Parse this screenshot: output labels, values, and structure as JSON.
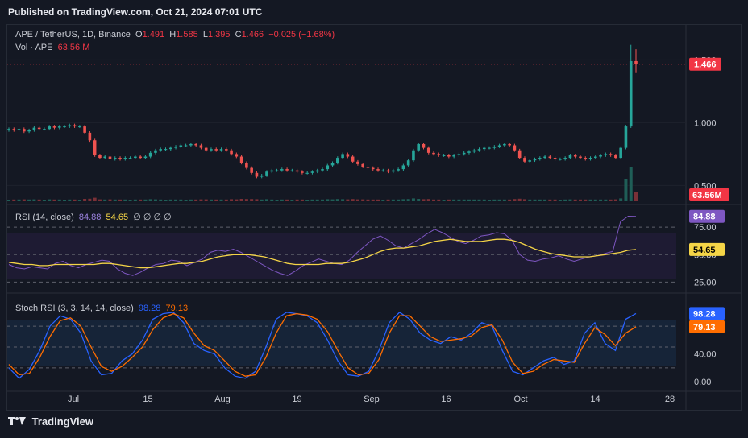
{
  "header": {
    "published": "Published on TradingView.com, Oct 21, 2024 07:01 UTC"
  },
  "legend": {
    "symbol": "APE / TetherUS, 1D, Binance",
    "o_label": "O",
    "o": "1.491",
    "h_label": "H",
    "h": "1.585",
    "l_label": "L",
    "l": "1.395",
    "c_label": "C",
    "c": "1.466",
    "change": "−0.025 (−1.68%)",
    "vol_label": "Vol · APE",
    "vol": "63.56 M"
  },
  "rsi_legend": {
    "label": "RSI (14, close)",
    "rsi": "84.88",
    "ma": "54.65",
    "extra": "∅ ∅ ∅ ∅"
  },
  "stoch_legend": {
    "label": "Stoch RSI (3, 3, 14, 14, close)",
    "k": "98.28",
    "d": "79.13"
  },
  "footer": {
    "brand": "TradingView"
  },
  "colors": {
    "up": "#26a69a",
    "down": "#ef5350",
    "rsi_line": "#7e57c2",
    "rsi_ma": "#f5d547",
    "stoch_k": "#2962ff",
    "stoch_d": "#ff6d00",
    "price_tag": "#f23645"
  },
  "chart_data": [
    {
      "type": "candlestick",
      "title": "APE / TetherUS, 1D, Binance",
      "y_ticks": [
        "0.500",
        "1.000",
        "1.500"
      ],
      "x_ticks": [
        "Jul",
        "15",
        "Aug",
        "19",
        "Sep",
        "16",
        "Oct",
        "14",
        "28"
      ],
      "last_price": "1.466",
      "volume_last": "63.56M",
      "close_series": [
        0.95,
        0.94,
        0.95,
        0.93,
        0.94,
        0.96,
        0.95,
        0.95,
        0.97,
        0.96,
        0.97,
        0.97,
        0.98,
        0.97,
        0.97,
        0.92,
        0.86,
        0.74,
        0.72,
        0.73,
        0.71,
        0.72,
        0.71,
        0.72,
        0.72,
        0.73,
        0.72,
        0.73,
        0.76,
        0.78,
        0.79,
        0.79,
        0.8,
        0.81,
        0.82,
        0.82,
        0.83,
        0.82,
        0.8,
        0.78,
        0.79,
        0.78,
        0.79,
        0.78,
        0.75,
        0.73,
        0.68,
        0.64,
        0.6,
        0.57,
        0.58,
        0.61,
        0.62,
        0.62,
        0.63,
        0.62,
        0.62,
        0.61,
        0.6,
        0.6,
        0.61,
        0.62,
        0.63,
        0.66,
        0.68,
        0.72,
        0.75,
        0.73,
        0.69,
        0.67,
        0.65,
        0.64,
        0.63,
        0.62,
        0.62,
        0.61,
        0.62,
        0.63,
        0.66,
        0.7,
        0.78,
        0.83,
        0.8,
        0.76,
        0.75,
        0.74,
        0.74,
        0.73,
        0.74,
        0.75,
        0.76,
        0.77,
        0.78,
        0.79,
        0.8,
        0.8,
        0.81,
        0.82,
        0.83,
        0.82,
        0.78,
        0.72,
        0.69,
        0.7,
        0.71,
        0.72,
        0.73,
        0.72,
        0.71,
        0.71,
        0.72,
        0.74,
        0.73,
        0.72,
        0.71,
        0.72,
        0.73,
        0.74,
        0.75,
        0.74,
        0.72,
        0.8,
        0.97,
        1.49,
        1.466
      ],
      "ylim": [
        0.4,
        1.65
      ]
    },
    {
      "type": "line",
      "title": "RSI (14, close)",
      "y_ticks": [
        "25.00",
        "50.00",
        "75.00"
      ],
      "series": [
        {
          "name": "RSI",
          "values": [
            41,
            38,
            37,
            39,
            38,
            37,
            42,
            44,
            40,
            38,
            41,
            43,
            45,
            44,
            37,
            33,
            31,
            34,
            38,
            41,
            42,
            45,
            44,
            40,
            43,
            46,
            52,
            54,
            53,
            55,
            52,
            48,
            44,
            40,
            36,
            33,
            31,
            35,
            40,
            43,
            46,
            44,
            42,
            41,
            45,
            52,
            58,
            64,
            67,
            63,
            58,
            56,
            60,
            64,
            69,
            73,
            70,
            66,
            62,
            60,
            63,
            67,
            68,
            70,
            69,
            63,
            50,
            45,
            44,
            46,
            47,
            49,
            46,
            44,
            46,
            48,
            49,
            51,
            53,
            80,
            85,
            84.88
          ]
        },
        {
          "name": "RSI-based MA",
          "values": [
            43,
            42,
            41,
            41,
            40,
            40,
            41,
            41,
            41,
            41,
            41,
            41,
            42,
            42,
            41,
            40,
            39,
            38,
            38,
            39,
            40,
            41,
            42,
            42,
            43,
            44,
            46,
            48,
            49,
            50,
            50,
            50,
            49,
            48,
            46,
            44,
            42,
            41,
            41,
            41,
            41,
            42,
            42,
            42,
            43,
            45,
            47,
            50,
            53,
            55,
            56,
            56,
            57,
            58,
            60,
            62,
            63,
            64,
            63,
            62,
            62,
            62,
            63,
            64,
            64,
            63,
            61,
            58,
            55,
            53,
            51,
            50,
            49,
            48,
            48,
            48,
            49,
            50,
            51,
            52,
            54,
            54.65
          ]
        }
      ],
      "ylim": [
        15,
        92
      ]
    },
    {
      "type": "line",
      "title": "Stoch RSI (3, 3, 14, 14, close)",
      "y_ticks": [
        "0.00",
        "40.00"
      ],
      "series": [
        {
          "name": "K",
          "values": [
            20,
            5,
            18,
            45,
            80,
            95,
            90,
            70,
            30,
            10,
            12,
            30,
            40,
            60,
            90,
            98,
            100,
            85,
            55,
            45,
            40,
            20,
            8,
            5,
            15,
            50,
            90,
            100,
            98,
            95,
            85,
            60,
            30,
            10,
            8,
            15,
            45,
            85,
            100,
            90,
            70,
            60,
            55,
            65,
            60,
            70,
            85,
            80,
            45,
            15,
            10,
            20,
            30,
            35,
            25,
            30,
            70,
            85,
            55,
            45,
            90,
            98.28
          ]
        },
        {
          "name": "D",
          "values": [
            25,
            10,
            12,
            35,
            65,
            88,
            92,
            80,
            50,
            22,
            15,
            22,
            35,
            50,
            75,
            92,
            98,
            92,
            70,
            52,
            45,
            30,
            15,
            8,
            10,
            35,
            70,
            95,
            98,
            96,
            90,
            72,
            45,
            20,
            10,
            12,
            32,
            70,
            95,
            95,
            80,
            65,
            58,
            60,
            62,
            66,
            78,
            82,
            60,
            28,
            12,
            15,
            25,
            32,
            30,
            28,
            55,
            78,
            68,
            52,
            70,
            79.13
          ]
        }
      ],
      "ylim": [
        -8,
        108
      ]
    }
  ]
}
